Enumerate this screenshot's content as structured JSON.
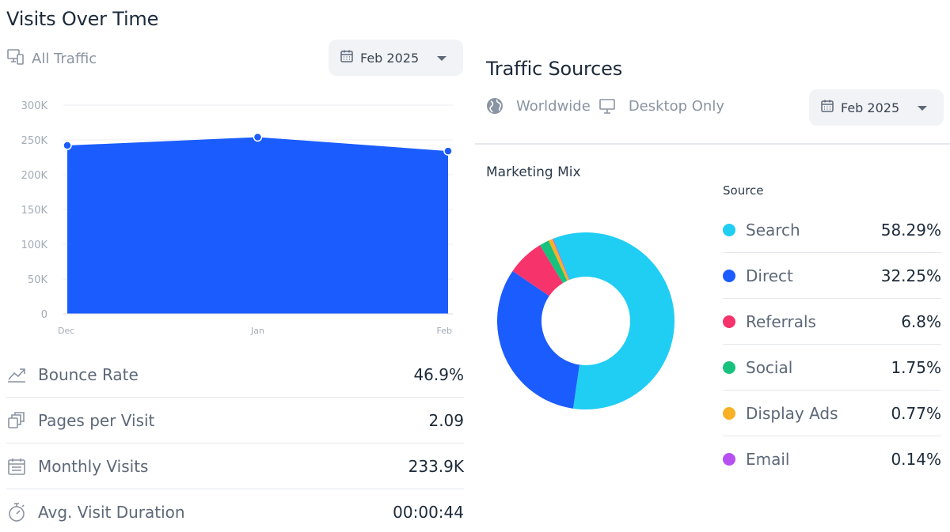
{
  "visits": {
    "title": "Visits Over Time",
    "filter_label": "All Traffic",
    "date_label": "Feb 2025"
  },
  "metrics": [
    {
      "label": "Bounce Rate",
      "value": "46.9%",
      "icon": "trend-icon"
    },
    {
      "label": "Pages per Visit",
      "value": "2.09",
      "icon": "pages-icon"
    },
    {
      "label": "Monthly Visits",
      "value": "233.9K",
      "icon": "calendar-icon"
    },
    {
      "label": "Avg. Visit Duration",
      "value": "00:00:44",
      "icon": "stopwatch-icon"
    }
  ],
  "sources": {
    "title": "Traffic Sources",
    "region_label": "Worldwide",
    "device_label": "Desktop Only",
    "date_label": "Feb 2025",
    "mix_title": "Marketing Mix",
    "legend_header": "Source"
  },
  "chart_data": [
    {
      "type": "area",
      "categories": [
        "Dec",
        "Jan",
        "Feb"
      ],
      "values": [
        242000,
        254000,
        234000
      ],
      "y_ticks": [
        "0",
        "50K",
        "100K",
        "150K",
        "200K",
        "250K",
        "300K"
      ],
      "ylim": [
        0,
        300000
      ],
      "grid": true,
      "color": "#1b5cff"
    },
    {
      "type": "pie",
      "donut": true,
      "slices": [
        {
          "label": "Search",
          "value": 58.29,
          "display": "58.29%",
          "color": "#20cdf3"
        },
        {
          "label": "Direct",
          "value": 32.25,
          "display": "32.25%",
          "color": "#1b5cff"
        },
        {
          "label": "Referrals",
          "value": 6.8,
          "display": "6.8%",
          "color": "#f6336b"
        },
        {
          "label": "Social",
          "value": 1.75,
          "display": "1.75%",
          "color": "#17c27e"
        },
        {
          "label": "Display Ads",
          "value": 0.77,
          "display": "0.77%",
          "color": "#f8b025"
        },
        {
          "label": "Email",
          "value": 0.14,
          "display": "0.14%",
          "color": "#b750f0"
        }
      ]
    }
  ]
}
